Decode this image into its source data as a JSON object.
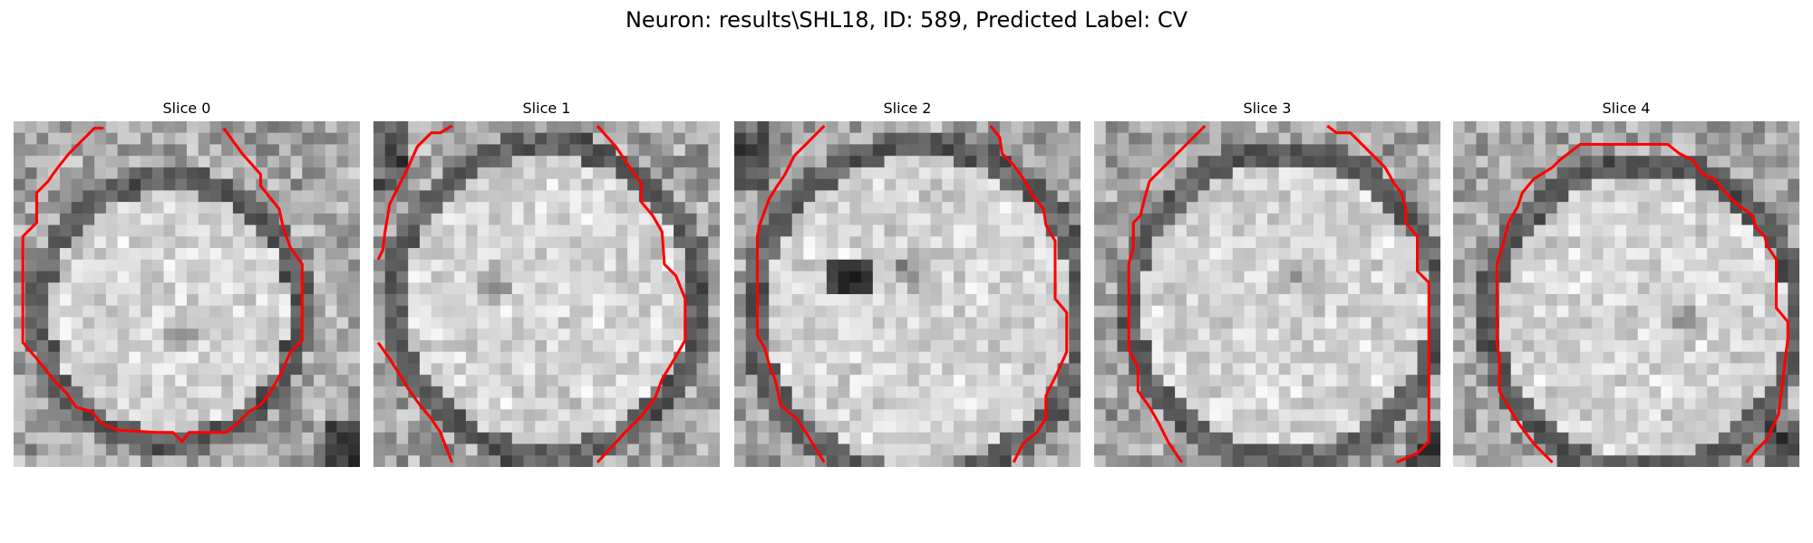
{
  "figure": {
    "title": "Neuron: results\\SHL18, ID: 589, Predicted Label: CV"
  },
  "panels": [
    {
      "title": "Slice 0"
    },
    {
      "title": "Slice 1"
    },
    {
      "title": "Slice 2"
    },
    {
      "title": "Slice 3"
    },
    {
      "title": "Slice 4"
    }
  ],
  "colors": {
    "contour": "#ff0000",
    "colormap": "gray"
  }
}
